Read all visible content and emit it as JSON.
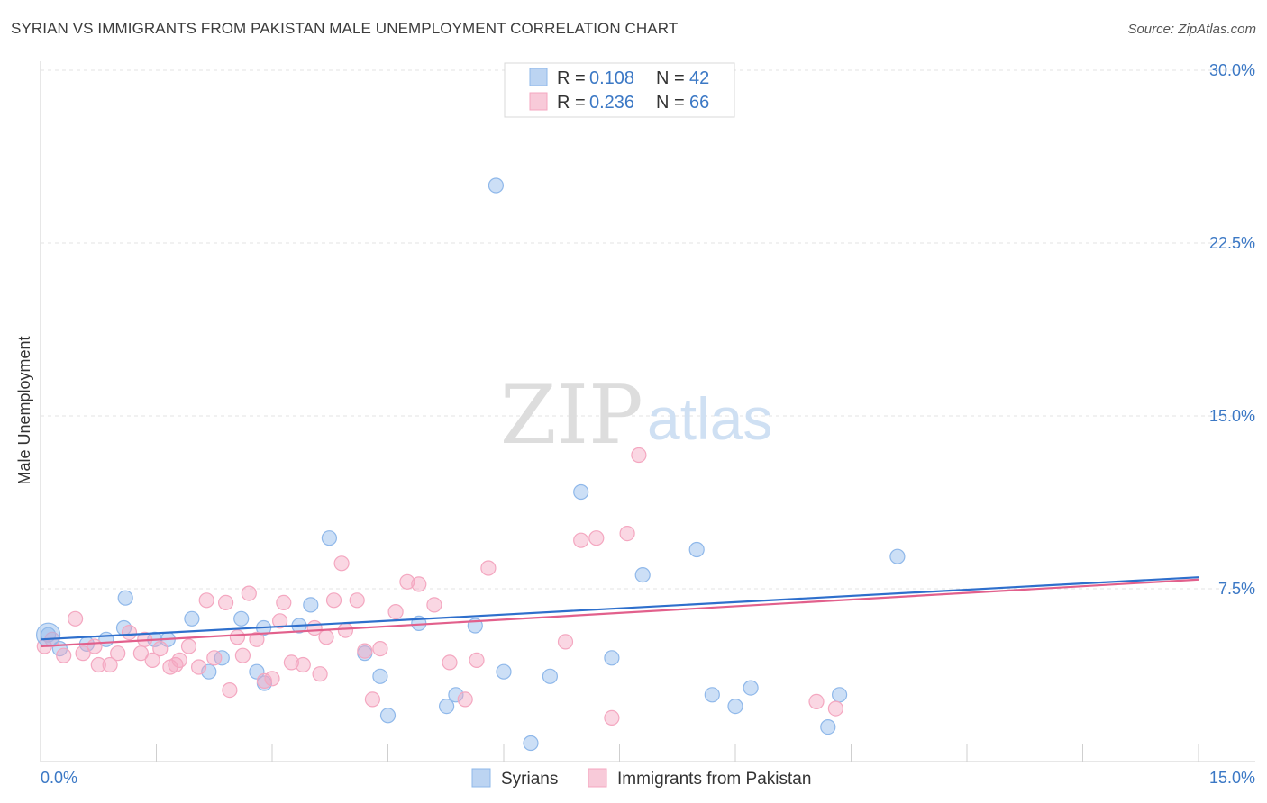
{
  "title": "SYRIAN VS IMMIGRANTS FROM PAKISTAN MALE UNEMPLOYMENT CORRELATION CHART",
  "source": "Source: ZipAtlas.com",
  "watermark": {
    "zip": "ZIP",
    "atlas": "atlas"
  },
  "legend": {
    "rows": [
      {
        "r_label": "R = ",
        "r_value": "0.108",
        "n_label": "N = ",
        "n_value": "42",
        "color": "#8fb8ea"
      },
      {
        "r_label": "R = ",
        "r_value": "0.236",
        "n_label": "N = ",
        "n_value": "66",
        "color": "#f4a7c0"
      }
    ]
  },
  "bottom_legend": [
    {
      "label": "Syrians",
      "color": "#8fb8ea"
    },
    {
      "label": "Immigrants from Pakistan",
      "color": "#f4a7c0"
    }
  ],
  "chart_data": {
    "type": "scatter",
    "title": "SYRIAN VS IMMIGRANTS FROM PAKISTAN MALE UNEMPLOYMENT CORRELATION CHART",
    "xlabel": "",
    "ylabel": "Male Unemployment",
    "xlim": [
      0,
      15
    ],
    "ylim": [
      0,
      30
    ],
    "x_tick_labels": [
      "0.0%",
      "15.0%"
    ],
    "y_ticks": [
      7.5,
      15,
      22.5,
      30
    ],
    "y_tick_labels": [
      "7.5%",
      "15.0%",
      "22.5%",
      "30.0%"
    ],
    "grid": true,
    "legend_position": "top-center",
    "series": [
      {
        "name": "Syrians",
        "color": "#8fb8ea",
        "line_color": "#2e6fcc",
        "trend": [
          [
            0,
            5.3
          ],
          [
            15,
            8.0
          ]
        ],
        "points": [
          [
            0.1,
            5.5
          ],
          [
            0.25,
            4.9
          ],
          [
            0.6,
            5.1
          ],
          [
            0.85,
            5.3
          ],
          [
            1.1,
            7.1
          ],
          [
            1.08,
            5.8
          ],
          [
            1.48,
            5.3
          ],
          [
            1.65,
            5.3
          ],
          [
            1.96,
            6.2
          ],
          [
            2.18,
            3.9
          ],
          [
            2.35,
            4.5
          ],
          [
            2.6,
            6.2
          ],
          [
            2.8,
            3.9
          ],
          [
            2.9,
            3.4
          ],
          [
            2.89,
            5.8
          ],
          [
            3.35,
            5.9
          ],
          [
            3.5,
            6.8
          ],
          [
            3.74,
            9.7
          ],
          [
            4.2,
            4.7
          ],
          [
            4.4,
            3.7
          ],
          [
            4.5,
            2.0
          ],
          [
            4.9,
            6.0
          ],
          [
            5.26,
            2.4
          ],
          [
            5.38,
            2.9
          ],
          [
            5.63,
            5.9
          ],
          [
            5.9,
            25.0
          ],
          [
            6.0,
            3.9
          ],
          [
            6.35,
            0.8
          ],
          [
            6.6,
            3.7
          ],
          [
            7.0,
            11.7
          ],
          [
            7.4,
            4.5
          ],
          [
            7.8,
            8.1
          ],
          [
            8.5,
            9.2
          ],
          [
            8.7,
            2.9
          ],
          [
            9.0,
            2.4
          ],
          [
            9.2,
            3.2
          ],
          [
            10.2,
            1.5
          ],
          [
            10.35,
            2.9
          ],
          [
            11.1,
            8.9
          ]
        ]
      },
      {
        "name": "Immigrants from Pakistan",
        "color": "#f4a7c0",
        "line_color": "#e2608c",
        "trend": [
          [
            0,
            5.0
          ],
          [
            15,
            7.9
          ]
        ],
        "points": [
          [
            0.05,
            5.0
          ],
          [
            0.15,
            5.3
          ],
          [
            0.3,
            4.6
          ],
          [
            0.45,
            6.2
          ],
          [
            0.55,
            4.7
          ],
          [
            0.7,
            5.0
          ],
          [
            0.75,
            4.2
          ],
          [
            0.9,
            4.2
          ],
          [
            1.0,
            4.7
          ],
          [
            1.15,
            5.6
          ],
          [
            1.3,
            4.7
          ],
          [
            1.35,
            5.3
          ],
          [
            1.45,
            4.4
          ],
          [
            1.55,
            4.9
          ],
          [
            1.68,
            4.1
          ],
          [
            1.75,
            4.2
          ],
          [
            1.8,
            4.4
          ],
          [
            1.92,
            5.0
          ],
          [
            2.05,
            4.1
          ],
          [
            2.15,
            7.0
          ],
          [
            2.25,
            4.5
          ],
          [
            2.4,
            6.9
          ],
          [
            2.45,
            3.1
          ],
          [
            2.55,
            5.4
          ],
          [
            2.62,
            4.6
          ],
          [
            2.7,
            7.3
          ],
          [
            2.8,
            5.3
          ],
          [
            2.9,
            3.5
          ],
          [
            3.0,
            3.6
          ],
          [
            3.1,
            6.1
          ],
          [
            3.15,
            6.9
          ],
          [
            3.25,
            4.3
          ],
          [
            3.4,
            4.2
          ],
          [
            3.55,
            5.8
          ],
          [
            3.62,
            3.8
          ],
          [
            3.7,
            5.4
          ],
          [
            3.8,
            7.0
          ],
          [
            3.9,
            8.6
          ],
          [
            3.95,
            5.7
          ],
          [
            4.1,
            7.0
          ],
          [
            4.2,
            4.8
          ],
          [
            4.3,
            2.7
          ],
          [
            4.4,
            4.9
          ],
          [
            4.6,
            6.5
          ],
          [
            4.75,
            7.8
          ],
          [
            4.9,
            7.7
          ],
          [
            5.1,
            6.8
          ],
          [
            5.3,
            4.3
          ],
          [
            5.5,
            2.7
          ],
          [
            5.65,
            4.4
          ],
          [
            5.8,
            8.4
          ],
          [
            6.8,
            5.2
          ],
          [
            7.0,
            9.6
          ],
          [
            7.2,
            9.7
          ],
          [
            7.4,
            1.9
          ],
          [
            7.6,
            9.9
          ],
          [
            7.75,
            13.3
          ],
          [
            10.05,
            2.6
          ],
          [
            10.3,
            2.3
          ]
        ]
      }
    ]
  }
}
